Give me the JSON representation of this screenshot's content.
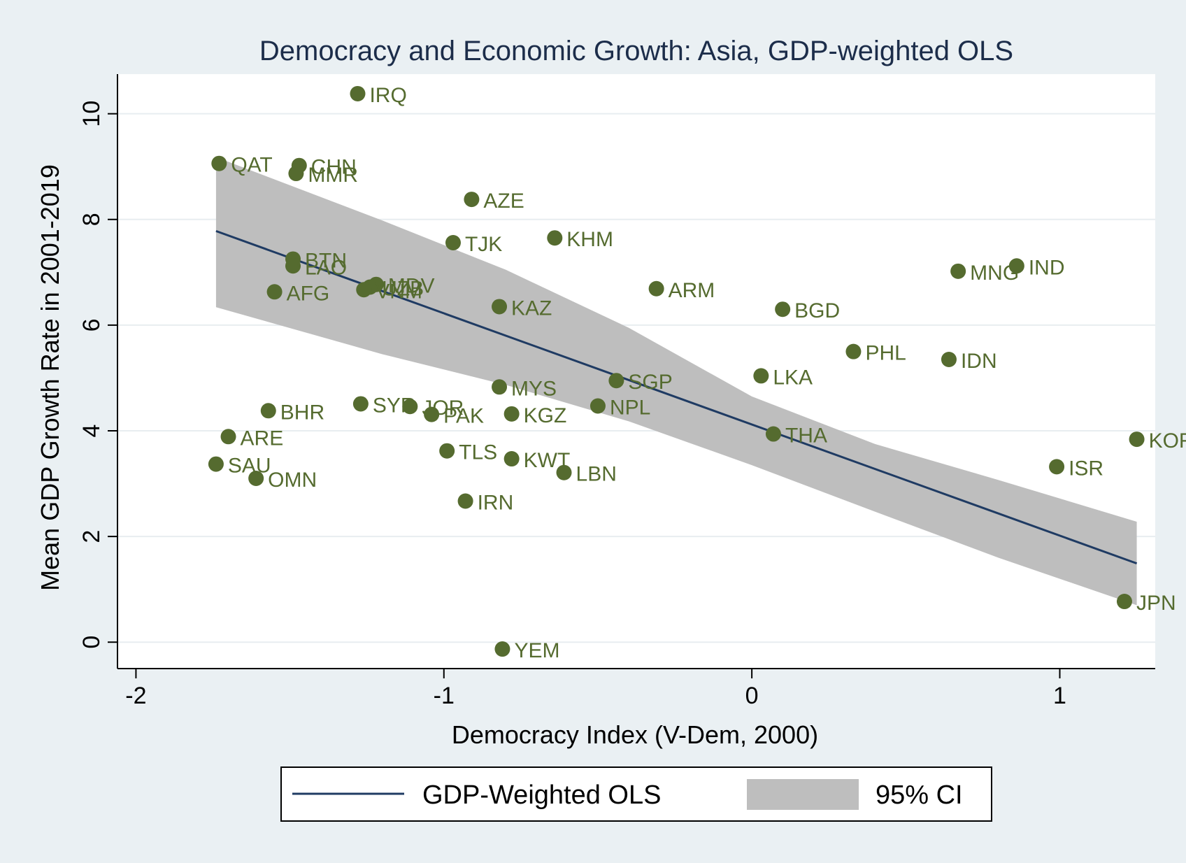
{
  "chart_data": {
    "type": "scatter",
    "title": "Democracy and Economic Growth: Asia, GDP-weighted OLS",
    "xlabel": "Democracy Index (V-Dem, 2000)",
    "ylabel": "Mean GDP Growth Rate in 2001-2019",
    "xlim": [
      -2.06,
      1.31
    ],
    "ylim": [
      -0.5,
      10.75
    ],
    "xticks": [
      -2,
      -1,
      0,
      1
    ],
    "xtick_labels": [
      "-2",
      "-1",
      "0",
      "1"
    ],
    "yticks": [
      0,
      2,
      4,
      6,
      8,
      10
    ],
    "ytick_labels": [
      "0",
      "2",
      "4",
      "6",
      "8",
      "10"
    ],
    "grid": true,
    "legend_position": "bottom",
    "colors": {
      "points": "#556b2f",
      "fit_line": "#1f3b63",
      "ci_band": "#bebebe",
      "plot_background": "#ffffff",
      "outer_background": "#eaf0f3",
      "grid": "#e8edf0"
    },
    "points": [
      {
        "label": "IRQ",
        "x": -1.28,
        "y": 10.38
      },
      {
        "label": "QAT",
        "x": -1.73,
        "y": 9.06
      },
      {
        "label": "CHN",
        "x": -1.47,
        "y": 9.02
      },
      {
        "label": "MMR",
        "x": -1.48,
        "y": 8.87
      },
      {
        "label": "AZE",
        "x": -0.91,
        "y": 8.38
      },
      {
        "label": "TJK",
        "x": -0.97,
        "y": 7.56
      },
      {
        "label": "KHM",
        "x": -0.64,
        "y": 7.65
      },
      {
        "label": "BTN",
        "x": -1.49,
        "y": 7.25
      },
      {
        "label": "LAO",
        "x": -1.49,
        "y": 7.12
      },
      {
        "label": "MNG",
        "x": 0.67,
        "y": 7.02
      },
      {
        "label": "IND",
        "x": 0.86,
        "y": 7.12
      },
      {
        "label": "MDV",
        "x": -1.22,
        "y": 6.77
      },
      {
        "label": "UZB",
        "x": -1.24,
        "y": 6.72
      },
      {
        "label": "VNM",
        "x": -1.26,
        "y": 6.67
      },
      {
        "label": "AFG",
        "x": -1.55,
        "y": 6.63
      },
      {
        "label": "ARM",
        "x": -0.31,
        "y": 6.69
      },
      {
        "label": "KAZ",
        "x": -0.82,
        "y": 6.35
      },
      {
        "label": "BGD",
        "x": 0.1,
        "y": 6.3
      },
      {
        "label": "PHL",
        "x": 0.33,
        "y": 5.5
      },
      {
        "label": "IDN",
        "x": 0.64,
        "y": 5.35
      },
      {
        "label": "LKA",
        "x": 0.03,
        "y": 5.04
      },
      {
        "label": "SGP",
        "x": -0.44,
        "y": 4.95
      },
      {
        "label": "MYS",
        "x": -0.82,
        "y": 4.83
      },
      {
        "label": "SYR",
        "x": -1.27,
        "y": 4.51
      },
      {
        "label": "JOR",
        "x": -1.11,
        "y": 4.46
      },
      {
        "label": "PAK",
        "x": -1.04,
        "y": 4.31
      },
      {
        "label": "KGZ",
        "x": -0.78,
        "y": 4.32
      },
      {
        "label": "NPL",
        "x": -0.5,
        "y": 4.47
      },
      {
        "label": "BHR",
        "x": -1.57,
        "y": 4.38
      },
      {
        "label": "ARE",
        "x": -1.7,
        "y": 3.89
      },
      {
        "label": "THA",
        "x": 0.07,
        "y": 3.94
      },
      {
        "label": "KOR",
        "x": 1.25,
        "y": 3.84
      },
      {
        "label": "SAU",
        "x": -1.74,
        "y": 3.37
      },
      {
        "label": "OMN",
        "x": -1.61,
        "y": 3.1
      },
      {
        "label": "TLS",
        "x": -0.99,
        "y": 3.62
      },
      {
        "label": "KWT",
        "x": -0.78,
        "y": 3.47
      },
      {
        "label": "LBN",
        "x": -0.61,
        "y": 3.21
      },
      {
        "label": "ISR",
        "x": 0.99,
        "y": 3.32
      },
      {
        "label": "IRN",
        "x": -0.93,
        "y": 2.67
      },
      {
        "label": "JPN",
        "x": 1.21,
        "y": 0.77
      },
      {
        "label": "YEM",
        "x": -0.81,
        "y": -0.13
      }
    ],
    "fit_line": {
      "name": "GDP-Weighted OLS",
      "x": [
        -1.74,
        1.25
      ],
      "y": [
        7.78,
        1.49
      ]
    },
    "ci_band": {
      "name": "95% CI",
      "x": [
        -1.74,
        -1.2,
        -0.8,
        -0.4,
        0.0,
        0.4,
        0.8,
        1.25
      ],
      "lower": [
        6.34,
        5.45,
        4.87,
        4.18,
        3.35,
        2.47,
        1.6,
        0.7
      ],
      "upper": [
        9.18,
        7.98,
        7.05,
        5.95,
        4.65,
        3.75,
        3.07,
        2.28
      ]
    },
    "legend": [
      {
        "label": "GDP-Weighted OLS",
        "kind": "line"
      },
      {
        "label": "95% CI",
        "kind": "area"
      }
    ]
  }
}
